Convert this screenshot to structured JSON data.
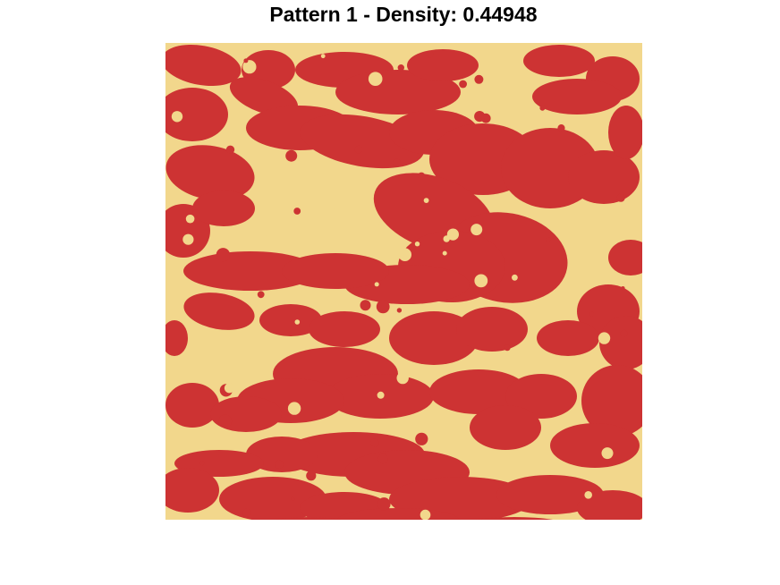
{
  "chart_data": {
    "type": "heatmap",
    "title": "Pattern 1 - Density: 0.44948",
    "density": 0.44948,
    "legend": "none",
    "axes": "none",
    "grid": false,
    "classes": [
      {
        "state": "occupied",
        "color": "#CD3333"
      },
      {
        "state": "empty",
        "color": "#F2D78C"
      }
    ]
  }
}
